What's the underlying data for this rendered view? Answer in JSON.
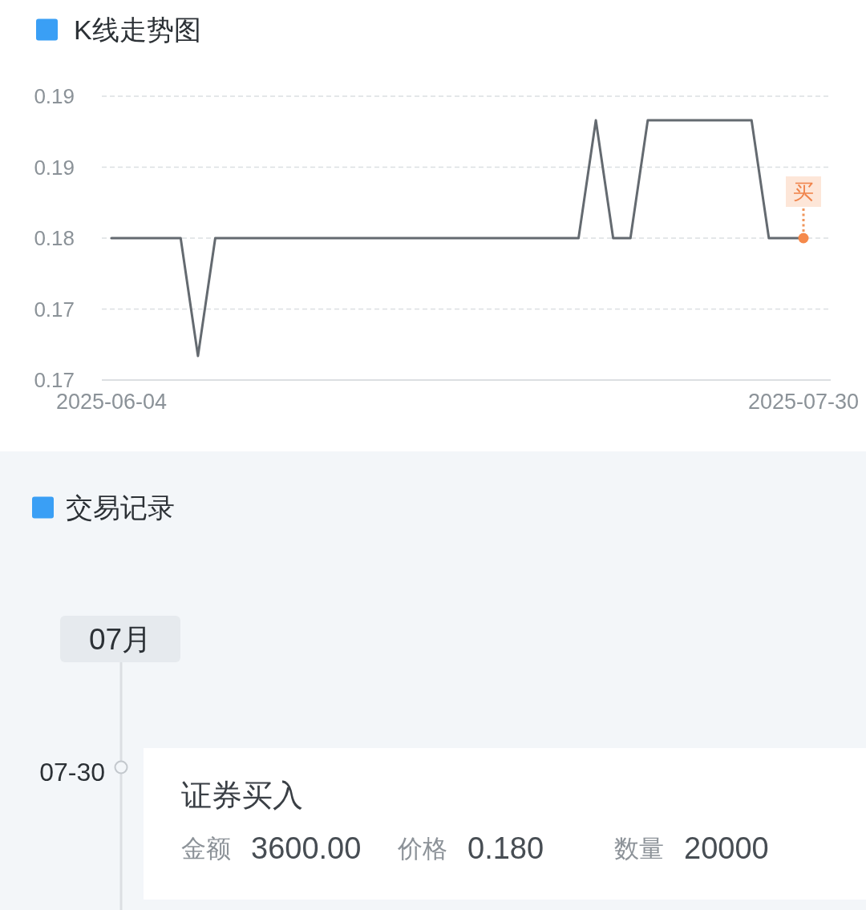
{
  "chart_data": [
    {
      "type": "line",
      "title": "K线走势图",
      "categories": [
        "2025-06-04",
        null,
        null,
        null,
        null,
        null,
        null,
        null,
        null,
        null,
        null,
        null,
        null,
        null,
        null,
        null,
        null,
        null,
        null,
        null,
        null,
        null,
        null,
        null,
        null,
        null,
        null,
        null,
        null,
        null,
        null,
        null,
        null,
        null,
        null,
        null,
        null,
        null,
        null,
        null,
        "2025-07-30"
      ],
      "series": [
        {
          "color": "#646a70",
          "values": [
            0.18,
            0.18,
            0.18,
            0.18,
            0.18,
            0.1717,
            0.18,
            0.18,
            0.18,
            0.18,
            0.18,
            0.18,
            0.18,
            0.18,
            0.18,
            0.18,
            0.18,
            0.18,
            0.18,
            0.18,
            0.18,
            0.18,
            0.18,
            0.18,
            0.18,
            0.18,
            0.18,
            0.18,
            0.1883,
            0.18,
            0.18,
            0.1883,
            0.1883,
            0.1883,
            0.1883,
            0.1883,
            0.1883,
            0.1883,
            0.18,
            0.18,
            0.18
          ]
        }
      ],
      "ylim": [
        0.17,
        0.19
      ],
      "yticks": [
        0.17,
        {
          "value": 0.175,
          "label": "0.17"
        },
        0.18,
        {
          "value": 0.185,
          "label": "0.19"
        },
        0.19
      ],
      "grid": "y",
      "line_style": "solid",
      "annotations": [
        {
          "text": "买",
          "x": "2025-07-30",
          "y": 0.18
        }
      ]
    },
    {
      "type": "other",
      "title": "交易记录",
      "annotations": [
        "07月",
        "07-30",
        "证券买入",
        "金额",
        "3600.00",
        "价格",
        "0.180",
        "数量",
        "20000"
      ]
    }
  ]
}
